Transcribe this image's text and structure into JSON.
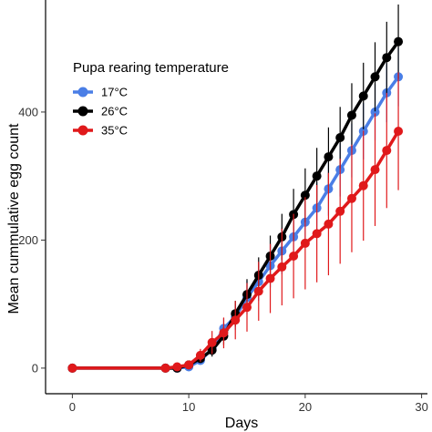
{
  "chart_data": {
    "type": "line",
    "title": "",
    "xlabel": "Days",
    "ylabel": "Mean cummulative egg count",
    "xlim": [
      -2.3,
      30.5
    ],
    "ylim": [
      -40,
      575
    ],
    "xticks": [
      0,
      10,
      20,
      30
    ],
    "yticks": [
      0,
      200,
      400
    ],
    "grid": false,
    "legend": {
      "title": "Pupa rearing temperature",
      "placement": "top-left"
    },
    "series": [
      {
        "name": "17°C",
        "color": "#4a7ee6",
        "x": [
          0,
          8,
          9,
          10,
          11,
          12,
          13,
          14,
          15,
          16,
          17,
          18,
          19,
          20,
          21,
          22,
          23,
          24,
          25,
          26,
          27,
          28
        ],
        "y": [
          0,
          0,
          0,
          2,
          12,
          30,
          62,
          80,
          110,
          135,
          160,
          183,
          205,
          228,
          250,
          280,
          310,
          340,
          370,
          400,
          430,
          455
        ],
        "err": [
          0,
          0,
          0,
          2,
          6,
          10,
          16,
          20,
          26,
          30,
          34,
          36,
          38,
          40,
          40,
          42,
          42,
          42,
          44,
          44,
          46,
          46
        ]
      },
      {
        "name": "26°C",
        "color": "#000000",
        "x": [
          0,
          8,
          9,
          10,
          11,
          12,
          13,
          14,
          15,
          16,
          17,
          18,
          19,
          20,
          21,
          22,
          23,
          24,
          25,
          26,
          27,
          28
        ],
        "y": [
          0,
          0,
          0,
          5,
          15,
          28,
          50,
          85,
          115,
          145,
          175,
          205,
          240,
          270,
          300,
          330,
          360,
          395,
          425,
          455,
          485,
          510
        ],
        "err": [
          0,
          0,
          0,
          3,
          6,
          10,
          14,
          20,
          24,
          28,
          32,
          36,
          40,
          42,
          44,
          46,
          48,
          50,
          52,
          54,
          56,
          58
        ]
      },
      {
        "name": "35°C",
        "color": "#e0191b",
        "x": [
          0,
          8,
          9,
          10,
          11,
          12,
          13,
          14,
          15,
          16,
          17,
          18,
          19,
          20,
          21,
          22,
          23,
          24,
          25,
          26,
          27,
          28
        ],
        "y": [
          0,
          0,
          2,
          5,
          20,
          40,
          55,
          75,
          95,
          120,
          140,
          158,
          175,
          195,
          210,
          225,
          245,
          265,
          285,
          310,
          340,
          370
        ],
        "err": [
          0,
          0,
          2,
          4,
          10,
          18,
          24,
          30,
          38,
          46,
          54,
          60,
          66,
          72,
          76,
          80,
          82,
          84,
          86,
          88,
          90,
          92
        ]
      }
    ]
  }
}
